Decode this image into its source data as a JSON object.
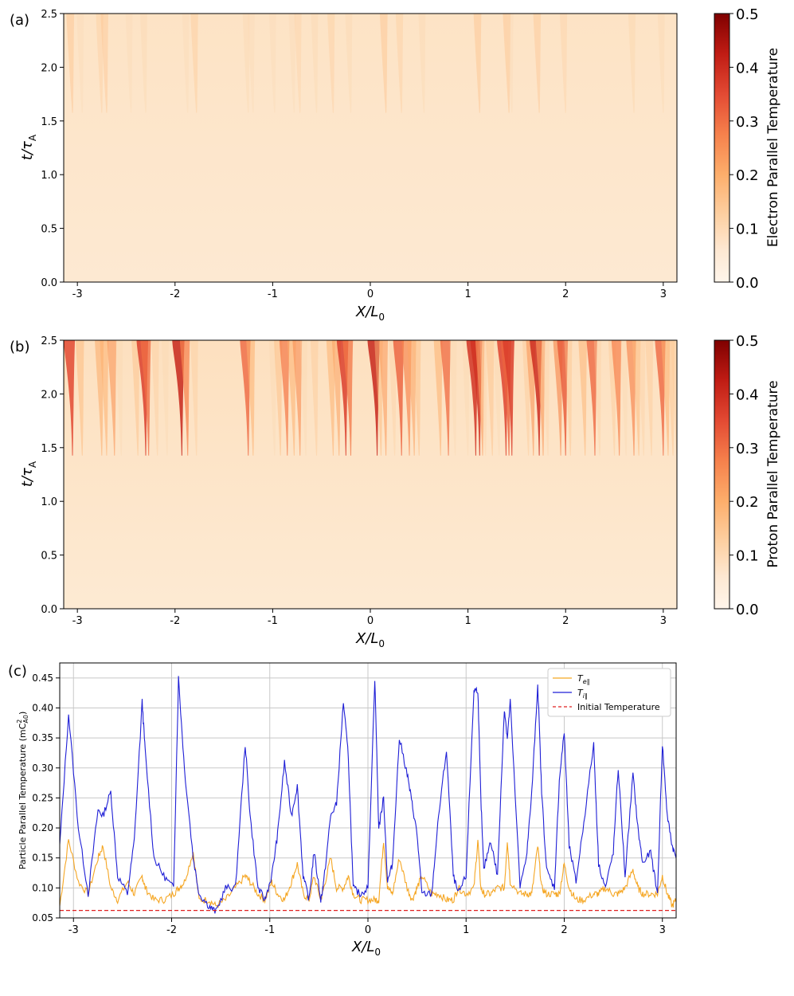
{
  "panels": {
    "a": {
      "tag": "(a)",
      "ylabel": "t/τ",
      "ylabel_sub": "A",
      "xlabel": "X/L",
      "xlabel_sub": "0",
      "colorbar_label": "Electron Parallel Temperature",
      "colorbar_ticks": [
        "0.0",
        "0.1",
        "0.2",
        "0.3",
        "0.4",
        "0.5"
      ],
      "yticks": [
        "0.0",
        "0.5",
        "1.0",
        "1.5",
        "2.0",
        "2.5"
      ],
      "xticks": [
        "-3",
        "-2",
        "-1",
        "0",
        "1",
        "2",
        "3"
      ]
    },
    "b": {
      "tag": "(b)",
      "ylabel": "t/τ",
      "ylabel_sub": "A",
      "xlabel": "X/L",
      "xlabel_sub": "0",
      "colorbar_label": "Proton Parallel Temperature",
      "colorbar_ticks": [
        "0.0",
        "0.1",
        "0.2",
        "0.3",
        "0.4",
        "0.5"
      ],
      "yticks": [
        "0.0",
        "0.5",
        "1.0",
        "1.5",
        "2.0",
        "2.5"
      ],
      "xticks": [
        "-3",
        "-2",
        "-1",
        "0",
        "1",
        "2",
        "3"
      ]
    },
    "c": {
      "tag": "(c)",
      "ylabel": "Particle Parallel Temperature (mC",
      "ylabel_sup": "2",
      "ylabel_sub": "A0",
      "ylabel_end": ")",
      "xlabel": "X/L",
      "xlabel_sub": "0",
      "yticks": [
        "0.05",
        "0.10",
        "0.15",
        "0.20",
        "0.25",
        "0.30",
        "0.35",
        "0.40",
        "0.45"
      ],
      "xticks": [
        "-3",
        "-2",
        "-1",
        "0",
        "1",
        "2",
        "3"
      ],
      "legend": {
        "te": "T",
        "te_sub": "e∥",
        "ti": "T",
        "ti_sub": "i∥",
        "init": "Initial Temperature"
      }
    }
  },
  "colors": {
    "electron_line": "#f5a623",
    "proton_line": "#1f1fd6",
    "initial_line": "#e02020",
    "colormap": [
      "#fff5eb",
      "#fde3c5",
      "#fdca90",
      "#fb9c5a",
      "#ef6548",
      "#cb2a1c",
      "#7f0000"
    ]
  },
  "chart_data": [
    {
      "type": "heatmap",
      "title": "",
      "xlabel": "X/L0",
      "ylabel": "t/τA",
      "xlim": [
        -3.14,
        3.14
      ],
      "ylim": [
        0,
        2.5
      ],
      "colorbar_label": "Electron Parallel Temperature",
      "clim": [
        0,
        0.5
      ],
      "baseline": 0.075,
      "onset_time": 1.6,
      "peak_values_at_final_time": "electron peaks about 0.15–0.18"
    },
    {
      "type": "heatmap",
      "title": "",
      "xlabel": "X/L0",
      "ylabel": "t/τA",
      "xlim": [
        -3.14,
        3.14
      ],
      "ylim": [
        0,
        2.5
      ],
      "colorbar_label": "Proton Parallel Temperature",
      "clim": [
        0,
        0.5
      ],
      "baseline": 0.08,
      "onset_time": 1.4
    },
    {
      "type": "line",
      "title": "",
      "xlabel": "X/L0",
      "ylabel": "Particle Parallel Temperature (mC_A0^2)",
      "xlim": [
        -3.14,
        3.14
      ],
      "ylim": [
        0.05,
        0.475
      ],
      "grid": true,
      "legend_position": "top-right",
      "x": [
        -3.14,
        -3.05,
        -2.95,
        -2.85,
        -2.75,
        -2.7,
        -2.62,
        -2.55,
        -2.45,
        -2.38,
        -2.3,
        -2.27,
        -2.18,
        -2.08,
        -1.98,
        -1.93,
        -1.87,
        -1.78,
        -1.72,
        -1.62,
        -1.55,
        -1.45,
        -1.35,
        -1.25,
        -1.2,
        -1.12,
        -1.05,
        -0.98,
        -0.92,
        -0.85,
        -0.78,
        -0.72,
        -0.66,
        -0.6,
        -0.55,
        -0.48,
        -0.45,
        -0.38,
        -0.32,
        -0.25,
        -0.2,
        -0.15,
        -0.08,
        0.0,
        0.07,
        0.11,
        0.16,
        0.2,
        0.25,
        0.32,
        0.4,
        0.45,
        0.5,
        0.55,
        0.65,
        0.72,
        0.8,
        0.87,
        0.92,
        1.0,
        1.08,
        1.12,
        1.15,
        1.18,
        1.25,
        1.32,
        1.39,
        1.42,
        1.45,
        1.55,
        1.62,
        1.67,
        1.73,
        1.77,
        1.82,
        1.9,
        1.95,
        2.0,
        2.05,
        2.12,
        2.2,
        2.3,
        2.35,
        2.42,
        2.5,
        2.55,
        2.62,
        2.7,
        2.75,
        2.8,
        2.88,
        2.95,
        3.0,
        3.05,
        3.1,
        3.14
      ],
      "series": [
        {
          "name": "T_e∥",
          "values": [
            0.07,
            0.18,
            0.11,
            0.09,
            0.15,
            0.17,
            0.1,
            0.08,
            0.11,
            0.09,
            0.12,
            0.1,
            0.08,
            0.08,
            0.09,
            0.1,
            0.11,
            0.16,
            0.08,
            0.08,
            0.07,
            0.08,
            0.1,
            0.12,
            0.11,
            0.09,
            0.08,
            0.11,
            0.09,
            0.08,
            0.11,
            0.14,
            0.09,
            0.08,
            0.12,
            0.08,
            0.1,
            0.15,
            0.1,
            0.1,
            0.12,
            0.09,
            0.08,
            0.08,
            0.08,
            0.08,
            0.18,
            0.1,
            0.09,
            0.15,
            0.1,
            0.08,
            0.1,
            0.12,
            0.09,
            0.09,
            0.08,
            0.08,
            0.1,
            0.09,
            0.1,
            0.18,
            0.1,
            0.09,
            0.09,
            0.1,
            0.1,
            0.18,
            0.11,
            0.09,
            0.09,
            0.09,
            0.17,
            0.1,
            0.09,
            0.09,
            0.09,
            0.14,
            0.1,
            0.08,
            0.08,
            0.09,
            0.09,
            0.1,
            0.09,
            0.09,
            0.1,
            0.13,
            0.1,
            0.09,
            0.09,
            0.09,
            0.12,
            0.09,
            0.07,
            0.08
          ]
        },
        {
          "name": "T_i∥",
          "values": [
            0.17,
            0.39,
            0.2,
            0.09,
            0.23,
            0.22,
            0.26,
            0.12,
            0.09,
            0.18,
            0.41,
            0.33,
            0.15,
            0.12,
            0.1,
            0.45,
            0.3,
            0.15,
            0.09,
            0.07,
            0.06,
            0.1,
            0.1,
            0.34,
            0.22,
            0.1,
            0.08,
            0.12,
            0.19,
            0.31,
            0.22,
            0.27,
            0.12,
            0.08,
            0.16,
            0.08,
            0.11,
            0.22,
            0.24,
            0.41,
            0.32,
            0.1,
            0.09,
            0.1,
            0.45,
            0.2,
            0.25,
            0.11,
            0.14,
            0.35,
            0.29,
            0.24,
            0.19,
            0.09,
            0.09,
            0.22,
            0.33,
            0.12,
            0.09,
            0.12,
            0.43,
            0.43,
            0.25,
            0.13,
            0.18,
            0.12,
            0.4,
            0.35,
            0.41,
            0.1,
            0.16,
            0.26,
            0.44,
            0.26,
            0.13,
            0.1,
            0.28,
            0.36,
            0.17,
            0.11,
            0.21,
            0.34,
            0.14,
            0.1,
            0.16,
            0.3,
            0.12,
            0.29,
            0.2,
            0.14,
            0.16,
            0.09,
            0.34,
            0.22,
            0.17,
            0.15
          ]
        },
        {
          "name": "Initial Temperature",
          "values": "constant 0.0625"
        }
      ]
    }
  ]
}
